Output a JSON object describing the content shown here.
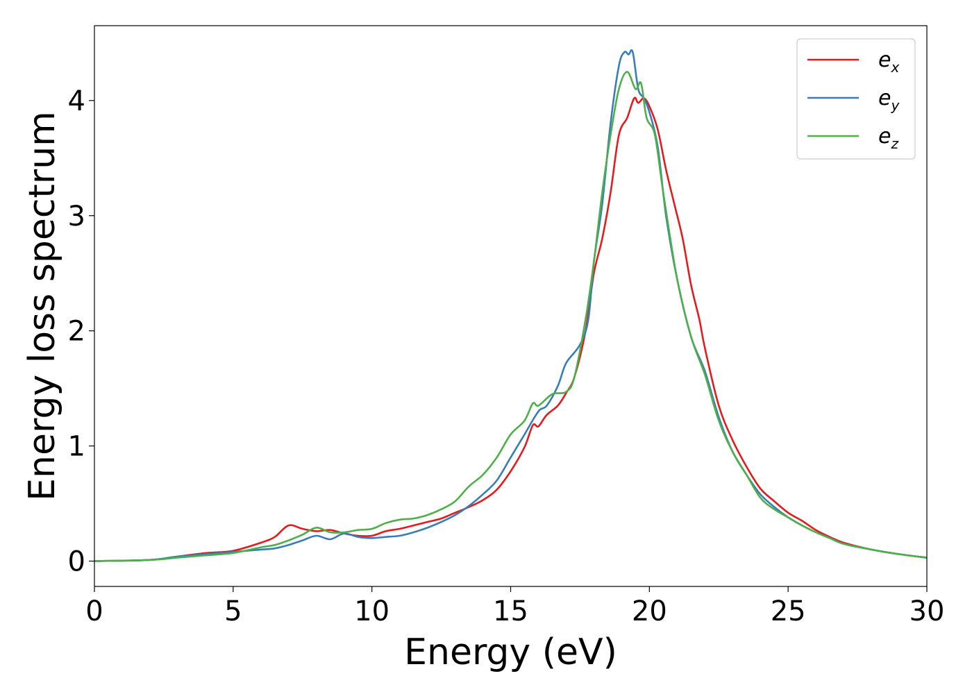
{
  "chart_data": {
    "type": "line",
    "title": "",
    "xlabel": "Energy (eV)",
    "ylabel": "Energy loss spectrum",
    "xlim": [
      0,
      30
    ],
    "ylim": [
      -0.22,
      4.65
    ],
    "xticks": [
      0,
      5,
      10,
      15,
      20,
      25,
      30
    ],
    "yticks": [
      0,
      1,
      2,
      3,
      4
    ],
    "grid": false,
    "legend_position": "top-right",
    "series": [
      {
        "name": "e_x",
        "legend_base": "e",
        "legend_sub": "x",
        "color": "#e41a1c",
        "points": [
          [
            0,
            0
          ],
          [
            2,
            0.01
          ],
          [
            3,
            0.04
          ],
          [
            4,
            0.07
          ],
          [
            5,
            0.09
          ],
          [
            6,
            0.16
          ],
          [
            6.5,
            0.21
          ],
          [
            7,
            0.31
          ],
          [
            7.5,
            0.28
          ],
          [
            8,
            0.26
          ],
          [
            8.5,
            0.27
          ],
          [
            9,
            0.24
          ],
          [
            9.5,
            0.22
          ],
          [
            10,
            0.22
          ],
          [
            10.5,
            0.26
          ],
          [
            11,
            0.28
          ],
          [
            11.5,
            0.31
          ],
          [
            12,
            0.34
          ],
          [
            12.5,
            0.37
          ],
          [
            13,
            0.42
          ],
          [
            13.5,
            0.47
          ],
          [
            14,
            0.53
          ],
          [
            14.5,
            0.62
          ],
          [
            15,
            0.78
          ],
          [
            15.5,
            0.99
          ],
          [
            15.8,
            1.18
          ],
          [
            16,
            1.17
          ],
          [
            16.3,
            1.27
          ],
          [
            16.7,
            1.35
          ],
          [
            17,
            1.46
          ],
          [
            17.3,
            1.6
          ],
          [
            17.7,
            2.0
          ],
          [
            18,
            2.5
          ],
          [
            18.3,
            2.8
          ],
          [
            18.6,
            3.2
          ],
          [
            18.9,
            3.7
          ],
          [
            19.2,
            3.85
          ],
          [
            19.45,
            4.02
          ],
          [
            19.6,
            3.98
          ],
          [
            19.8,
            4.02
          ],
          [
            20,
            3.95
          ],
          [
            20.3,
            3.75
          ],
          [
            20.6,
            3.4
          ],
          [
            20.9,
            3.1
          ],
          [
            21.2,
            2.8
          ],
          [
            21.5,
            2.4
          ],
          [
            21.8,
            2.1
          ],
          [
            22,
            1.85
          ],
          [
            22.5,
            1.35
          ],
          [
            23,
            1.05
          ],
          [
            23.5,
            0.82
          ],
          [
            24,
            0.63
          ],
          [
            24.5,
            0.52
          ],
          [
            25,
            0.42
          ],
          [
            25.5,
            0.35
          ],
          [
            26,
            0.27
          ],
          [
            26.5,
            0.21
          ],
          [
            27,
            0.16
          ],
          [
            28,
            0.1
          ],
          [
            29,
            0.06
          ],
          [
            30,
            0.03
          ]
        ]
      },
      {
        "name": "e_y",
        "legend_base": "e",
        "legend_sub": "y",
        "color": "#377eb8",
        "points": [
          [
            0,
            0
          ],
          [
            2,
            0.01
          ],
          [
            3,
            0.04
          ],
          [
            4,
            0.06
          ],
          [
            5,
            0.08
          ],
          [
            6,
            0.1
          ],
          [
            6.5,
            0.11
          ],
          [
            7,
            0.14
          ],
          [
            7.5,
            0.18
          ],
          [
            8,
            0.22
          ],
          [
            8.5,
            0.19
          ],
          [
            9,
            0.24
          ],
          [
            9.5,
            0.21
          ],
          [
            10,
            0.2
          ],
          [
            10.5,
            0.21
          ],
          [
            11,
            0.22
          ],
          [
            11.5,
            0.25
          ],
          [
            12,
            0.29
          ],
          [
            12.5,
            0.34
          ],
          [
            13,
            0.4
          ],
          [
            13.5,
            0.48
          ],
          [
            14,
            0.58
          ],
          [
            14.5,
            0.7
          ],
          [
            15,
            0.9
          ],
          [
            15.5,
            1.1
          ],
          [
            16,
            1.3
          ],
          [
            16.3,
            1.35
          ],
          [
            16.7,
            1.52
          ],
          [
            17,
            1.72
          ],
          [
            17.5,
            1.88
          ],
          [
            17.8,
            2.1
          ],
          [
            18,
            2.6
          ],
          [
            18.3,
            3.1
          ],
          [
            18.6,
            3.8
          ],
          [
            18.9,
            4.3
          ],
          [
            19.1,
            4.42
          ],
          [
            19.25,
            4.4
          ],
          [
            19.4,
            4.42
          ],
          [
            19.6,
            4.1
          ],
          [
            19.8,
            4.02
          ],
          [
            20,
            3.9
          ],
          [
            20.3,
            3.6
          ],
          [
            20.6,
            3.0
          ],
          [
            21,
            2.45
          ],
          [
            21.5,
            1.95
          ],
          [
            22,
            1.65
          ],
          [
            22.5,
            1.25
          ],
          [
            23,
            0.95
          ],
          [
            23.5,
            0.75
          ],
          [
            24,
            0.58
          ],
          [
            24.5,
            0.47
          ],
          [
            25,
            0.38
          ],
          [
            25.5,
            0.31
          ],
          [
            26,
            0.25
          ],
          [
            26.5,
            0.2
          ],
          [
            27,
            0.15
          ],
          [
            28,
            0.1
          ],
          [
            29,
            0.06
          ],
          [
            30,
            0.03
          ]
        ]
      },
      {
        "name": "e_z",
        "legend_base": "e",
        "legend_sub": "z",
        "color": "#4daf4a",
        "points": [
          [
            0,
            0
          ],
          [
            2,
            0.01
          ],
          [
            3,
            0.03
          ],
          [
            4,
            0.05
          ],
          [
            5,
            0.07
          ],
          [
            6,
            0.12
          ],
          [
            6.5,
            0.14
          ],
          [
            7,
            0.18
          ],
          [
            7.5,
            0.23
          ],
          [
            8,
            0.29
          ],
          [
            8.5,
            0.25
          ],
          [
            9,
            0.25
          ],
          [
            9.5,
            0.27
          ],
          [
            10,
            0.28
          ],
          [
            10.5,
            0.33
          ],
          [
            11,
            0.36
          ],
          [
            11.5,
            0.37
          ],
          [
            12,
            0.4
          ],
          [
            12.5,
            0.45
          ],
          [
            13,
            0.52
          ],
          [
            13.5,
            0.65
          ],
          [
            14,
            0.75
          ],
          [
            14.5,
            0.9
          ],
          [
            15,
            1.1
          ],
          [
            15.5,
            1.22
          ],
          [
            15.8,
            1.37
          ],
          [
            16,
            1.35
          ],
          [
            16.5,
            1.45
          ],
          [
            17,
            1.47
          ],
          [
            17.3,
            1.6
          ],
          [
            17.7,
            2.1
          ],
          [
            18,
            2.6
          ],
          [
            18.3,
            3.2
          ],
          [
            18.6,
            3.7
          ],
          [
            18.9,
            4.1
          ],
          [
            19.2,
            4.25
          ],
          [
            19.5,
            4.1
          ],
          [
            19.7,
            4.15
          ],
          [
            19.9,
            3.85
          ],
          [
            20.2,
            3.7
          ],
          [
            20.5,
            3.2
          ],
          [
            21,
            2.45
          ],
          [
            21.5,
            1.95
          ],
          [
            22,
            1.62
          ],
          [
            22.5,
            1.22
          ],
          [
            23,
            0.95
          ],
          [
            23.5,
            0.75
          ],
          [
            24,
            0.55
          ],
          [
            24.5,
            0.45
          ],
          [
            25,
            0.38
          ],
          [
            25.5,
            0.31
          ],
          [
            26,
            0.25
          ],
          [
            26.5,
            0.2
          ],
          [
            27,
            0.15
          ],
          [
            28,
            0.1
          ],
          [
            29,
            0.06
          ],
          [
            30,
            0.03
          ]
        ]
      }
    ]
  }
}
